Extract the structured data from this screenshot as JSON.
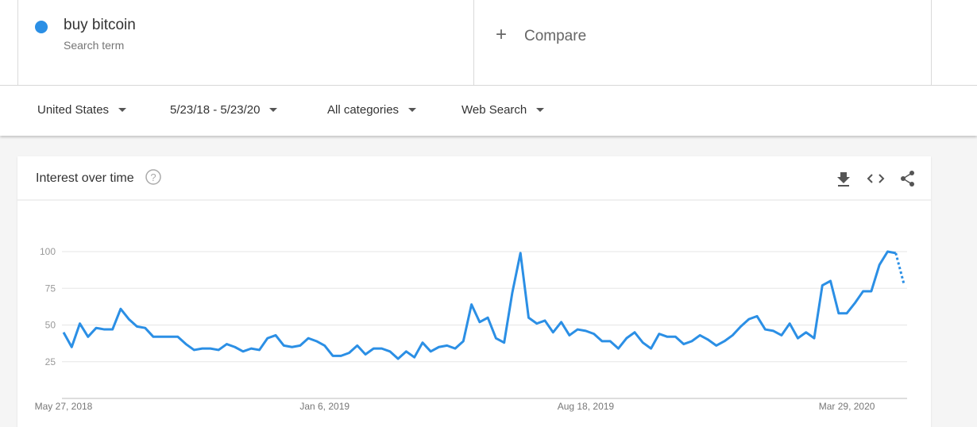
{
  "compare": "Compare",
  "search_term_label": "Search term",
  "filters": [
    "United States",
    "5/23/18 - 5/23/20",
    "All categories",
    "Web Search"
  ],
  "chart_data": {
    "type": "line",
    "title": "Interest over time",
    "categories": [
      "May 27, 2018",
      null,
      null,
      null,
      null,
      null,
      null,
      null,
      null,
      null,
      null,
      null,
      null,
      null,
      null,
      null,
      null,
      null,
      null,
      null,
      null,
      null,
      null,
      null,
      null,
      null,
      null,
      null,
      null,
      null,
      null,
      null,
      "Jan 6, 2019",
      null,
      null,
      null,
      null,
      null,
      null,
      null,
      null,
      null,
      null,
      null,
      null,
      null,
      null,
      null,
      null,
      null,
      null,
      null,
      null,
      null,
      null,
      null,
      null,
      null,
      null,
      null,
      null,
      null,
      null,
      null,
      "Aug 18, 2019",
      null,
      null,
      null,
      null,
      null,
      null,
      null,
      null,
      null,
      null,
      null,
      null,
      null,
      null,
      null,
      null,
      null,
      null,
      null,
      null,
      null,
      null,
      null,
      null,
      null,
      null,
      null,
      null,
      null,
      null,
      null,
      "Mar 29, 2020",
      null,
      null,
      null,
      null,
      null,
      null,
      null
    ],
    "series": [
      {
        "name": "buy bitcoin",
        "color": "#2b8fe5",
        "values": [
          45,
          35,
          51,
          42,
          48,
          47,
          47,
          61,
          54,
          49,
          48,
          42,
          42,
          42,
          42,
          37,
          33,
          34,
          34,
          33,
          37,
          35,
          32,
          34,
          33,
          41,
          43,
          36,
          35,
          36,
          41,
          39,
          36,
          29,
          29,
          31,
          36,
          30,
          34,
          34,
          32,
          27,
          32,
          28,
          38,
          32,
          35,
          36,
          34,
          39,
          64,
          52,
          55,
          41,
          38,
          72,
          99,
          55,
          51,
          53,
          45,
          52,
          43,
          47,
          46,
          44,
          39,
          39,
          34,
          41,
          45,
          38,
          34,
          44,
          42,
          42,
          37,
          39,
          43,
          40,
          36,
          39,
          43,
          49,
          54,
          56,
          47,
          46,
          43,
          51,
          41,
          45,
          41,
          77,
          80,
          58,
          58,
          65,
          73,
          73,
          91,
          100,
          99,
          78
        ]
      }
    ],
    "ylim": [
      0,
      100
    ],
    "yticks": [
      25,
      50,
      75,
      100
    ],
    "grid": true,
    "partial_last_point": true
  }
}
